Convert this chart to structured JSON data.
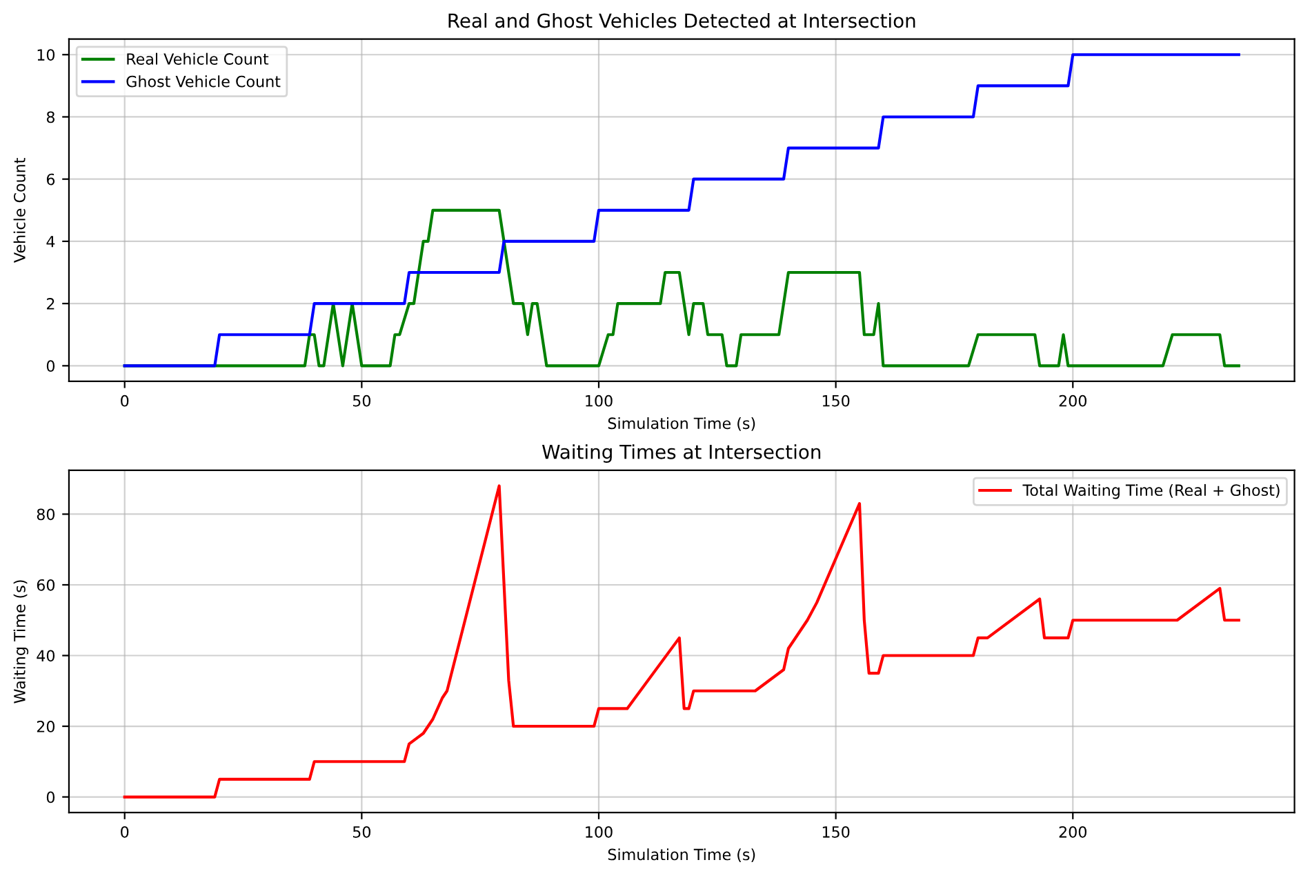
{
  "chart_data": [
    {
      "type": "line",
      "title": "Real and Ghost Vehicles Detected at Intersection",
      "xlabel": "Simulation Time (s)",
      "ylabel": "Vehicle Count",
      "xlim": [
        -11.75,
        246.75
      ],
      "xticks": [
        0,
        50,
        100,
        150,
        200
      ],
      "ylim": [
        -0.5,
        10.5
      ],
      "yticks": [
        0,
        2,
        4,
        6,
        8,
        10
      ],
      "grid": true,
      "legend": "top left",
      "series": [
        {
          "name": "Real Vehicle Count",
          "color": "#008000",
          "x": [
            0,
            38,
            39,
            40,
            41,
            42,
            44,
            46,
            48,
            50,
            56,
            57,
            58,
            60,
            61,
            62,
            63,
            64,
            65,
            79,
            80,
            82,
            84,
            85,
            86,
            87,
            89,
            100,
            102,
            103,
            104,
            113,
            114,
            117,
            119,
            120,
            122,
            123,
            126,
            127,
            129,
            130,
            138,
            140,
            155,
            156,
            158,
            159,
            160,
            178,
            180,
            192,
            193,
            197,
            198,
            199,
            219,
            221,
            231,
            232,
            235
          ],
          "values": [
            0,
            0,
            1,
            1,
            0,
            0,
            2,
            0,
            2,
            0,
            0,
            1,
            1,
            2,
            2,
            3,
            4,
            4,
            5,
            5,
            4,
            2,
            2,
            1,
            2,
            2,
            0,
            0,
            1,
            1,
            2,
            2,
            3,
            3,
            1,
            2,
            2,
            1,
            1,
            0,
            0,
            1,
            1,
            3,
            3,
            1,
            1,
            2,
            0,
            0,
            1,
            1,
            0,
            0,
            1,
            0,
            0,
            1,
            1,
            0,
            0
          ]
        },
        {
          "name": "Ghost Vehicle Count",
          "color": "#0000ff",
          "x": [
            0,
            19,
            20,
            39,
            40,
            59,
            60,
            79,
            80,
            99,
            100,
            119,
            120,
            139,
            140,
            159,
            160,
            179,
            180,
            199,
            200,
            235
          ],
          "values": [
            0,
            0,
            1,
            1,
            2,
            2,
            3,
            3,
            4,
            4,
            5,
            5,
            6,
            6,
            7,
            7,
            8,
            8,
            9,
            9,
            10,
            10
          ]
        }
      ]
    },
    {
      "type": "line",
      "title": "Waiting Times at Intersection",
      "xlabel": "Simulation Time (s)",
      "ylabel": "Waiting Time (s)",
      "xlim": [
        -11.75,
        246.75
      ],
      "xticks": [
        0,
        50,
        100,
        150,
        200
      ],
      "ylim": [
        -4.4,
        92.4
      ],
      "yticks": [
        0,
        20,
        40,
        60,
        80
      ],
      "grid": true,
      "legend": "top right",
      "series": [
        {
          "name": "Total Waiting Time (Real + Ghost)",
          "color": "#ff0000",
          "x": [
            0,
            19,
            20,
            39,
            40,
            59,
            60,
            62,
            63,
            65,
            67,
            68,
            79,
            81,
            82,
            99,
            100,
            106,
            117,
            118,
            119,
            120,
            133,
            139,
            140,
            144,
            146,
            155,
            156,
            157,
            159,
            160,
            179,
            180,
            182,
            193,
            194,
            199,
            200,
            222,
            231,
            232,
            235
          ],
          "values": [
            0,
            0,
            5,
            5,
            10,
            10,
            15,
            17,
            18,
            22,
            28,
            30,
            88,
            33,
            20,
            20,
            25,
            25,
            45,
            25,
            25,
            30,
            30,
            36,
            42,
            50,
            55,
            83,
            50,
            35,
            35,
            40,
            40,
            45,
            45,
            56,
            45,
            45,
            50,
            50,
            59,
            50,
            50
          ]
        }
      ]
    }
  ]
}
